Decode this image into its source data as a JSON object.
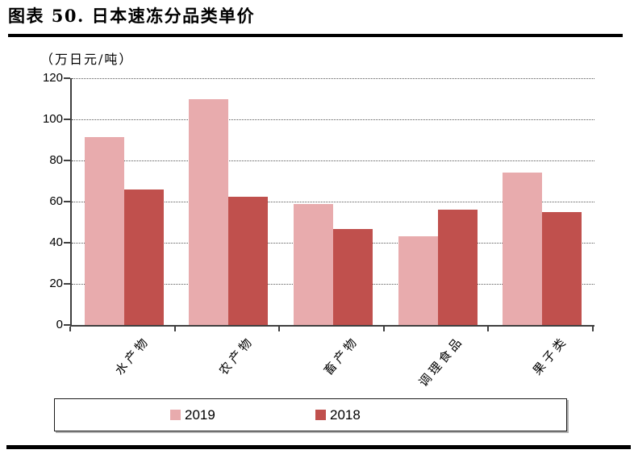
{
  "page": {
    "title": "图表 50. 日本速冻分品类单价"
  },
  "chart_data": {
    "type": "bar",
    "title": "图表 50. 日本速冻分品类单价",
    "unit_label": "（万日元/吨）",
    "categories": [
      "水产物",
      "农产物",
      "畜产物",
      "调理食品",
      "果子类"
    ],
    "series": [
      {
        "name": "2019",
        "color": "#e8abad",
        "values": [
          91.5,
          109.8,
          59,
          43,
          74.2
        ]
      },
      {
        "name": "2018",
        "color": "#c0504d",
        "values": [
          65.8,
          62.5,
          46.5,
          56.2,
          54.8
        ]
      }
    ],
    "ylim": [
      0,
      120
    ],
    "yticks": [
      0,
      20,
      40,
      60,
      80,
      100,
      120
    ],
    "grid": "horizontal-dotted",
    "legend_position": "bottom",
    "axis_color": "#3f3f3f",
    "gridline_color": "#595959"
  }
}
